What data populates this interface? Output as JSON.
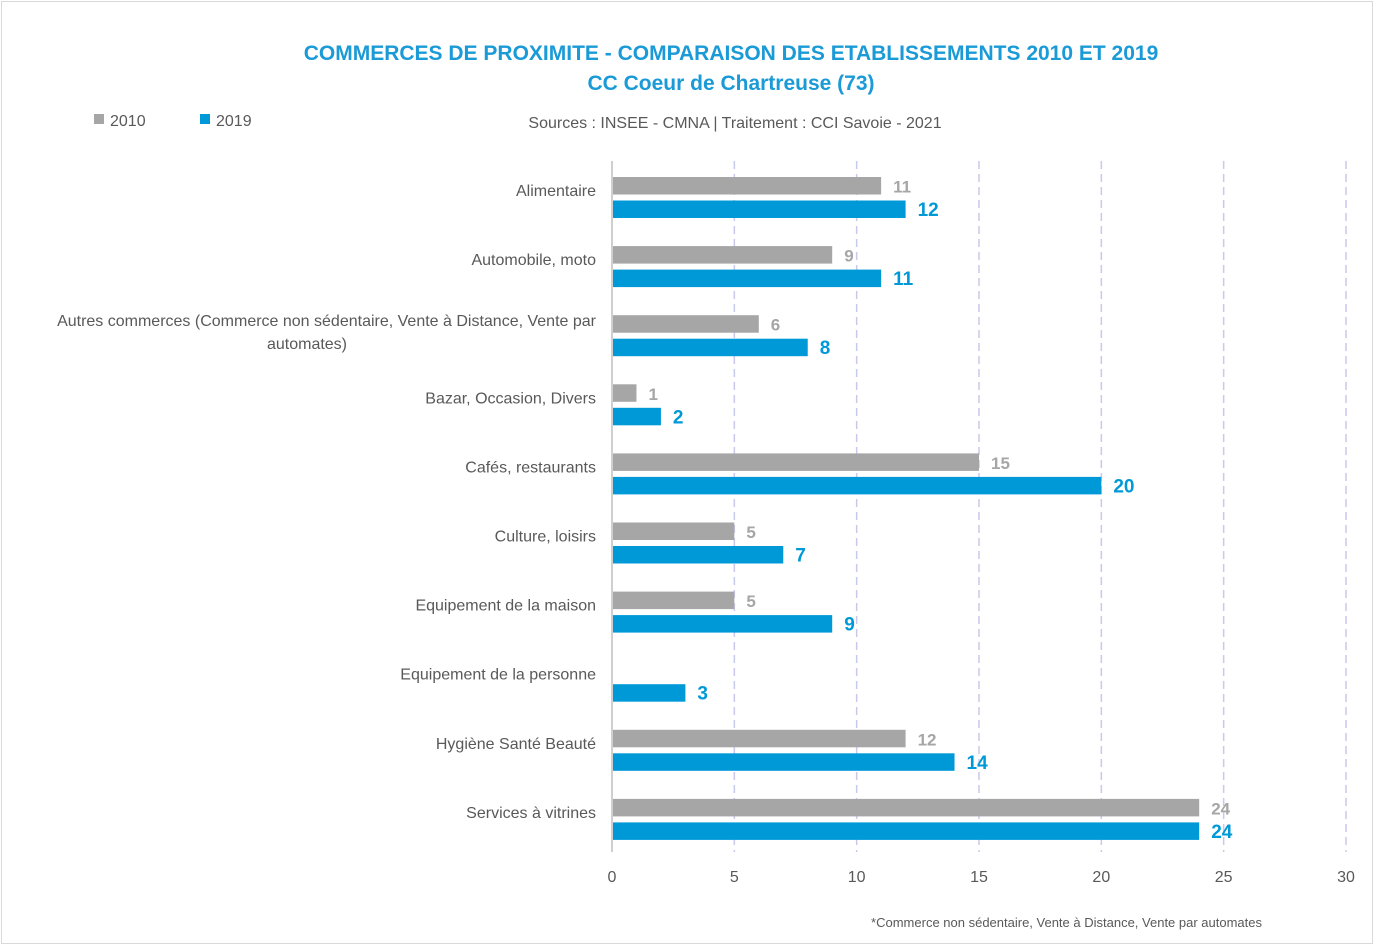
{
  "chart_data": {
    "type": "bar",
    "orientation": "horizontal",
    "title": "COMMERCES DE PROXIMITE - COMPARAISON DES ETABLISSEMENTS 2010 ET 2019",
    "subtitle": "CC Coeur de Chartreuse (73)",
    "source": "Sources : INSEE - CMNA  |  Traitement : CCI Savoie - 2021",
    "footnote": "*Commerce non sédentaire, Vente à Distance, Vente par automates",
    "categories": [
      [
        "Alimentaire"
      ],
      [
        "Automobile, moto"
      ],
      [
        "Autres commerces (Commerce non sédentaire, Vente à Distance, Vente par",
        "automates)"
      ],
      [
        "Bazar, Occasion, Divers"
      ],
      [
        "Cafés, restaurants"
      ],
      [
        "Culture, loisirs"
      ],
      [
        "Equipement de la maison"
      ],
      [
        "Equipement de la personne"
      ],
      [
        "Hygiène Santé Beauté"
      ],
      [
        "Services à vitrines"
      ]
    ],
    "series": [
      {
        "name": "2010",
        "color": "#a6a6a6",
        "values": [
          11,
          9,
          6,
          1,
          15,
          5,
          5,
          null,
          12,
          24
        ]
      },
      {
        "name": "2019",
        "color": "#0099d8",
        "values": [
          12,
          11,
          8,
          2,
          20,
          7,
          9,
          3,
          14,
          24
        ]
      }
    ],
    "xlim": [
      0,
      30
    ],
    "xticks": [
      0,
      5,
      10,
      15,
      20,
      25,
      30
    ],
    "grid": true,
    "legend": "top-left"
  },
  "colors": {
    "title": "#1a9ad6",
    "text": "#595959",
    "grid": "#c9c9ec",
    "axis": "#bfbfbf"
  }
}
